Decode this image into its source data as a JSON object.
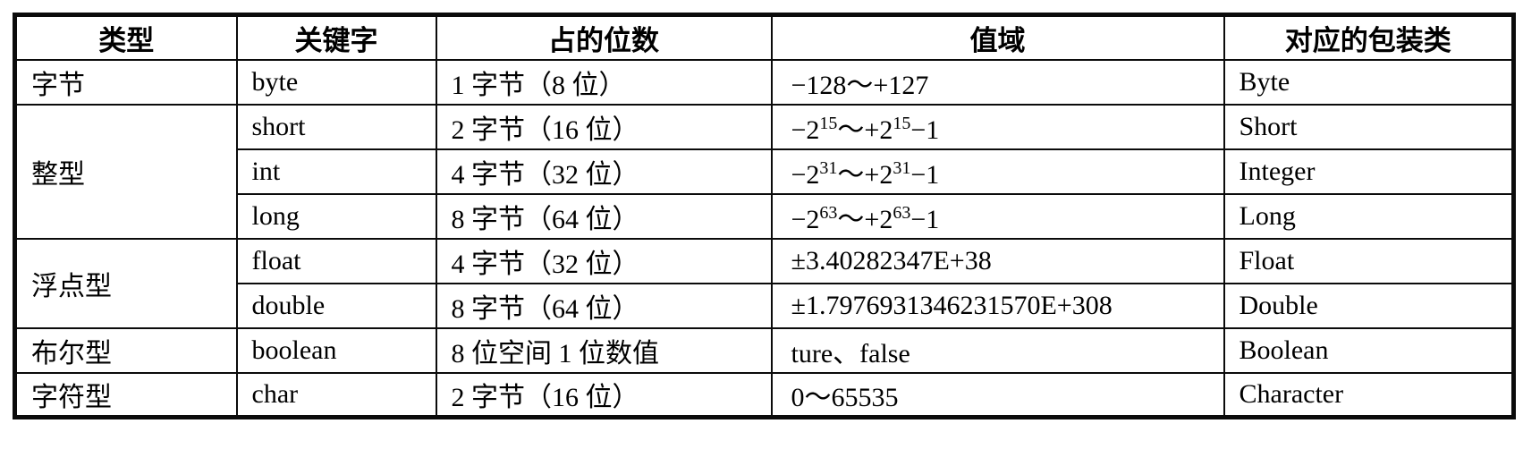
{
  "colors": {
    "background": "#ffffff",
    "border": "#0b0b0b",
    "text": "#000000"
  },
  "table": {
    "headers": [
      "类型",
      "关键字",
      "占的位数",
      "值域",
      "对应的包装类"
    ],
    "rows": [
      {
        "type": "字节",
        "type_rowspan": 1,
        "keyword": "byte",
        "bits": "1 字节（8 位）",
        "range": [
          {
            "text": "−128～+127",
            "sup": false
          }
        ],
        "wrapper": "Byte"
      },
      {
        "type": "整型",
        "type_rowspan": 3,
        "keyword": "short",
        "bits": "2 字节（16 位）",
        "range": [
          {
            "text": "−2",
            "sup": false
          },
          {
            "text": "15",
            "sup": true
          },
          {
            "text": "～+2",
            "sup": false
          },
          {
            "text": "15",
            "sup": true
          },
          {
            "text": "−1",
            "sup": false
          }
        ],
        "wrapper": "Short"
      },
      {
        "type": null,
        "type_rowspan": 0,
        "keyword": "int",
        "bits": "4 字节（32 位）",
        "range": [
          {
            "text": "−2",
            "sup": false
          },
          {
            "text": "31",
            "sup": true
          },
          {
            "text": "～+2",
            "sup": false
          },
          {
            "text": "31",
            "sup": true
          },
          {
            "text": "−1",
            "sup": false
          }
        ],
        "wrapper": "Integer"
      },
      {
        "type": null,
        "type_rowspan": 0,
        "keyword": "long",
        "bits": "8 字节（64 位）",
        "range": [
          {
            "text": "−2",
            "sup": false
          },
          {
            "text": "63",
            "sup": true
          },
          {
            "text": "～+2",
            "sup": false
          },
          {
            "text": "63",
            "sup": true
          },
          {
            "text": "−1",
            "sup": false
          }
        ],
        "wrapper": "Long"
      },
      {
        "type": "浮点型",
        "type_rowspan": 2,
        "keyword": "float",
        "bits": "4 字节（32 位）",
        "range": [
          {
            "text": "±3.40282347E+38",
            "sup": false
          }
        ],
        "wrapper": "Float"
      },
      {
        "type": null,
        "type_rowspan": 0,
        "keyword": "double",
        "bits": "8 字节（64 位）",
        "range": [
          {
            "text": "±1.7976931346231570E+308",
            "sup": false
          }
        ],
        "wrapper": "Double"
      },
      {
        "type": "布尔型",
        "type_rowspan": 1,
        "keyword": "boolean",
        "bits": "8 位空间 1 位数值",
        "range": [
          {
            "text": "ture、false",
            "sup": false
          }
        ],
        "wrapper": "Boolean"
      },
      {
        "type": "字符型",
        "type_rowspan": 1,
        "keyword": "char",
        "bits": "2 字节（16 位）",
        "range": [
          {
            "text": "0～65535",
            "sup": false
          }
        ],
        "wrapper": "Character"
      }
    ]
  }
}
